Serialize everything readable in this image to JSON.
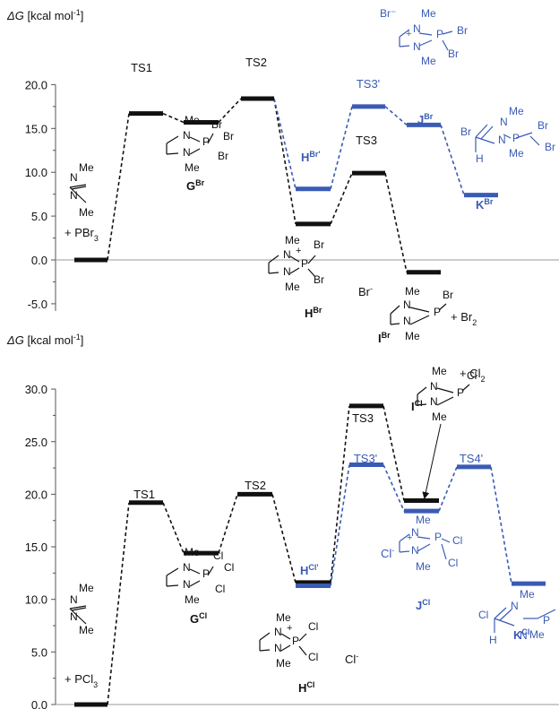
{
  "colors": {
    "main": "#111111",
    "alt": "#3a5bb5",
    "axis": "#555555",
    "baseline": "#999999"
  },
  "chart_data": [
    {
      "type": "line",
      "title": "",
      "ylabel": {
        "sym": "ΔG",
        "unit": " [kcal mol",
        "sup": "-1",
        "close": "]"
      },
      "ylim": [
        -5,
        20
      ],
      "yticks": [
        "-5.0",
        "0.0",
        "5.0",
        "10.0",
        "15.0",
        "20.0"
      ],
      "baseline": 0,
      "levels": [
        {
          "id": "start",
          "value": 0.0,
          "color": "main"
        },
        {
          "id": "TS1",
          "value": 16.7,
          "color": "main"
        },
        {
          "id": "G",
          "value": 15.7,
          "color": "main"
        },
        {
          "id": "TS2",
          "value": 18.4,
          "color": "main"
        },
        {
          "id": "H",
          "value": 4.1,
          "color": "main"
        },
        {
          "id": "TS3",
          "value": 9.9,
          "color": "main"
        },
        {
          "id": "I",
          "value": -1.4,
          "color": "main"
        },
        {
          "id": "H'",
          "value": 8.1,
          "color": "alt"
        },
        {
          "id": "TS3'",
          "value": 17.5,
          "color": "alt"
        },
        {
          "id": "J",
          "value": 15.4,
          "color": "alt"
        },
        {
          "id": "K",
          "value": 7.4,
          "color": "alt"
        }
      ],
      "paths": [
        {
          "color": "main",
          "nodes": [
            "start",
            "TS1",
            "G",
            "TS2",
            "H",
            "TS3",
            "I"
          ]
        },
        {
          "color": "alt",
          "nodes": [
            "TS2",
            "H'",
            "TS3'",
            "J",
            "K"
          ]
        }
      ],
      "labels": [
        {
          "text": "TS1",
          "color": "main"
        },
        {
          "text": "TS2",
          "color": "main"
        },
        {
          "text": "TS3",
          "color": "main"
        },
        {
          "text": "TS3'",
          "color": "alt"
        },
        {
          "main": "G",
          "sup": "Br",
          "color": "main",
          "bold": true
        },
        {
          "main": "H",
          "sup": "Br",
          "color": "main",
          "bold": true
        },
        {
          "main": "I",
          "sup": "Br",
          "color": "main",
          "bold": true
        },
        {
          "main": "H",
          "sup": "Br'",
          "color": "alt",
          "bold": true
        },
        {
          "main": "J",
          "sup": "Br",
          "color": "alt",
          "bold": true
        },
        {
          "main": "K",
          "sup": "Br",
          "color": "alt",
          "bold": true
        },
        {
          "main": "+ PBr",
          "sub": "3",
          "color": "main"
        },
        {
          "main": "Br",
          "sup": "-",
          "color": "main"
        },
        {
          "main": "+ Br",
          "sub": "2",
          "color": "main"
        }
      ],
      "molecules": {
        "start": {
          "color": "main",
          "atoms": [
            "Me",
            "N",
            "N",
            "Me"
          ]
        },
        "G": {
          "color": "main",
          "atoms": [
            "Me",
            "N",
            "P",
            "Br",
            "Br",
            "Br",
            "N",
            "Me"
          ]
        },
        "H": {
          "color": "main",
          "atoms": [
            "Me",
            "N",
            "+",
            "P",
            "Br",
            "Br",
            "N",
            "Me"
          ]
        },
        "I": {
          "color": "main",
          "atoms": [
            "Me",
            "N",
            "P",
            "Br",
            "N",
            "Me"
          ]
        },
        "J": {
          "color": "alt",
          "atoms": [
            "Br⁻",
            "Me",
            "N",
            "+",
            "P",
            "Br",
            "Br",
            "N",
            "Me"
          ]
        },
        "K": {
          "color": "alt",
          "atoms": [
            "Br",
            "N",
            "Me",
            "P",
            "Br",
            "Br",
            "N",
            "H",
            "Me"
          ]
        }
      }
    },
    {
      "type": "line",
      "title": "",
      "ylabel": {
        "sym": "ΔG",
        "unit": " [kcal mol",
        "sup": "-1",
        "close": "]"
      },
      "ylim": [
        0,
        30
      ],
      "yticks": [
        "0.0",
        "5.0",
        "10.0",
        "15.0",
        "20.0",
        "25.0",
        "30.0"
      ],
      "baseline": 0,
      "levels": [
        {
          "id": "start",
          "value": 0.0,
          "color": "main"
        },
        {
          "id": "TS1",
          "value": 19.2,
          "color": "main"
        },
        {
          "id": "G",
          "value": 14.4,
          "color": "main"
        },
        {
          "id": "TS2",
          "value": 20.0,
          "color": "main"
        },
        {
          "id": "H",
          "value": 11.6,
          "color": "main"
        },
        {
          "id": "TS3",
          "value": 28.4,
          "color": "main"
        },
        {
          "id": "I",
          "value": 19.4,
          "color": "main"
        },
        {
          "id": "H'",
          "value": 11.3,
          "color": "alt"
        },
        {
          "id": "TS3'",
          "value": 22.8,
          "color": "alt"
        },
        {
          "id": "J",
          "value": 18.4,
          "color": "alt"
        },
        {
          "id": "TS4'",
          "value": 22.6,
          "color": "alt"
        },
        {
          "id": "K",
          "value": 11.5,
          "color": "alt"
        }
      ],
      "paths": [
        {
          "color": "main",
          "nodes": [
            "start",
            "TS1",
            "G",
            "TS2",
            "H",
            "TS3",
            "I"
          ]
        },
        {
          "color": "alt",
          "nodes": [
            "H'",
            "TS3'",
            "J",
            "TS4'",
            "K"
          ]
        }
      ],
      "labels": [
        {
          "text": "TS1",
          "color": "main"
        },
        {
          "text": "TS2",
          "color": "main"
        },
        {
          "text": "TS3",
          "color": "main"
        },
        {
          "text": "TS3'",
          "color": "alt"
        },
        {
          "text": "TS4'",
          "color": "alt"
        },
        {
          "main": "G",
          "sup": "Cl",
          "color": "main",
          "bold": true
        },
        {
          "main": "H",
          "sup": "Cl",
          "color": "main",
          "bold": true
        },
        {
          "main": "I",
          "sup": "Cl",
          "color": "main",
          "bold": true
        },
        {
          "main": "H",
          "sup": "Cl'",
          "color": "alt",
          "bold": true
        },
        {
          "main": "J",
          "sup": "Cl",
          "color": "alt",
          "bold": true
        },
        {
          "main": "K",
          "sup": "Cl",
          "color": "alt",
          "bold": true
        },
        {
          "main": "+ PCl",
          "sub": "3",
          "color": "main"
        },
        {
          "main": "Cl",
          "sup": "-",
          "color": "main"
        },
        {
          "main": "+ Cl",
          "sub": "2",
          "color": "main"
        },
        {
          "main": "Cl",
          "sup": "-",
          "color": "alt"
        }
      ],
      "molecules": {
        "start": {
          "color": "main",
          "atoms": [
            "Me",
            "N",
            "N",
            "Me"
          ]
        },
        "G": {
          "color": "main",
          "atoms": [
            "Me",
            "N",
            "P",
            "Cl",
            "Cl",
            "Cl",
            "N",
            "Me"
          ]
        },
        "H": {
          "color": "main",
          "atoms": [
            "Me",
            "N",
            "+",
            "P",
            "Cl",
            "Cl",
            "N",
            "Me"
          ]
        },
        "I": {
          "color": "main",
          "atoms": [
            "Me",
            "N",
            "P",
            "Cl",
            "N",
            "Me"
          ]
        },
        "J": {
          "color": "alt",
          "atoms": [
            "Me",
            "N",
            "+",
            "P",
            "Cl",
            "Cl",
            "N",
            "Me"
          ]
        },
        "K": {
          "color": "alt",
          "atoms": [
            "Cl",
            "N",
            "Me",
            "P",
            "N",
            "H",
            "Me"
          ]
        }
      }
    }
  ]
}
